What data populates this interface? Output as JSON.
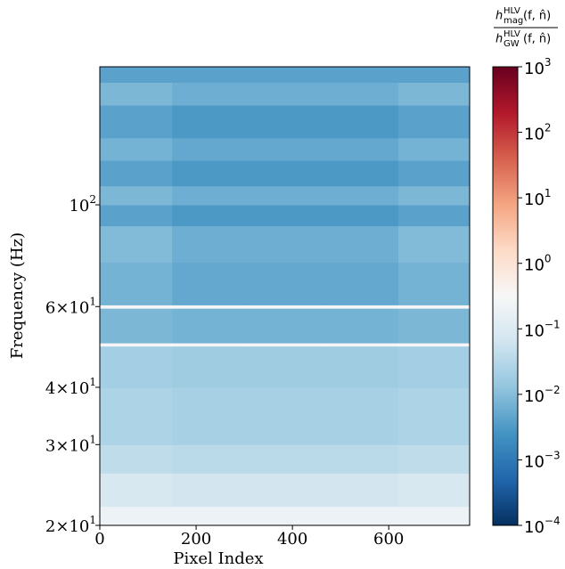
{
  "chart_data": {
    "type": "heatmap",
    "xlabel": "Pixel Index",
    "ylabel": "Frequency (Hz)",
    "colorbar_label": {
      "numerator": {
        "base": "h",
        "sup": "HLV",
        "sub": "mag",
        "arg": "(f, n̂)"
      },
      "denominator": {
        "base": "h",
        "sup": "HLV",
        "sub": "GW",
        "arg": "(f, n̂)"
      }
    },
    "xlim": [
      0,
      768
    ],
    "xticks": [
      0,
      200,
      400,
      600
    ],
    "ylim": [
      20,
      200
    ],
    "ylog": true,
    "yticks": [
      {
        "value": 20,
        "label": "2×10",
        "exponent": "1"
      },
      {
        "value": 30,
        "label": "3×10",
        "exponent": "1"
      },
      {
        "value": 40,
        "label": "4×10",
        "exponent": "1"
      },
      {
        "value": 60,
        "label": "6×10",
        "exponent": "1"
      },
      {
        "value": 100,
        "label": "10",
        "exponent": "2"
      }
    ],
    "clim": [
      0.0001,
      1000
    ],
    "clog": true,
    "cticks": [
      {
        "value": 0.0001,
        "label": "10",
        "exponent": "−4"
      },
      {
        "value": 0.001,
        "label": "10",
        "exponent": "−3"
      },
      {
        "value": 0.01,
        "label": "10",
        "exponent": "−2"
      },
      {
        "value": 0.1,
        "label": "10",
        "exponent": "−1"
      },
      {
        "value": 1,
        "label": "10",
        "exponent": "0"
      },
      {
        "value": 10,
        "label": "10",
        "exponent": "1"
      },
      {
        "value": 100,
        "label": "10",
        "exponent": "2"
      },
      {
        "value": 1000,
        "label": "10",
        "exponent": "3"
      }
    ],
    "colormap": [
      "#053061",
      "#2166ac",
      "#4393c3",
      "#92c5de",
      "#d1e5f0",
      "#f7f7f7",
      "#fddbc7",
      "#f4a582",
      "#d6604d",
      "#b2182b",
      "#67001f"
    ],
    "x_edges": [
      0,
      150,
      300,
      470,
      620,
      768
    ],
    "y_edges": [
      20,
      22,
      26,
      30,
      40,
      49.2,
      50,
      59.5,
      60.5,
      75,
      90,
      100,
      110,
      125,
      140,
      165,
      185,
      200
    ],
    "values": [
      [
        0.2,
        0.2,
        0.2,
        0.2,
        0.2
      ],
      [
        0.08,
        0.07,
        0.07,
        0.07,
        0.08
      ],
      [
        0.04,
        0.035,
        0.035,
        0.035,
        0.04
      ],
      [
        0.025,
        0.022,
        0.022,
        0.022,
        0.025
      ],
      [
        0.02,
        0.018,
        0.018,
        0.018,
        0.02
      ],
      [
        0.3,
        0.3,
        0.3,
        0.3,
        0.3
      ],
      [
        0.008,
        0.007,
        0.007,
        0.007,
        0.008
      ],
      [
        0.3,
        0.3,
        0.3,
        0.3,
        0.3
      ],
      [
        0.007,
        0.005,
        0.005,
        0.005,
        0.007
      ],
      [
        0.009,
        0.006,
        0.006,
        0.006,
        0.009
      ],
      [
        0.004,
        0.003,
        0.003,
        0.003,
        0.004
      ],
      [
        0.008,
        0.006,
        0.006,
        0.006,
        0.008
      ],
      [
        0.004,
        0.003,
        0.003,
        0.003,
        0.004
      ],
      [
        0.007,
        0.005,
        0.005,
        0.005,
        0.007
      ],
      [
        0.004,
        0.003,
        0.003,
        0.003,
        0.004
      ],
      [
        0.008,
        0.006,
        0.006,
        0.006,
        0.008
      ],
      [
        0.004,
        0.004,
        0.004,
        0.004,
        0.004
      ]
    ]
  }
}
